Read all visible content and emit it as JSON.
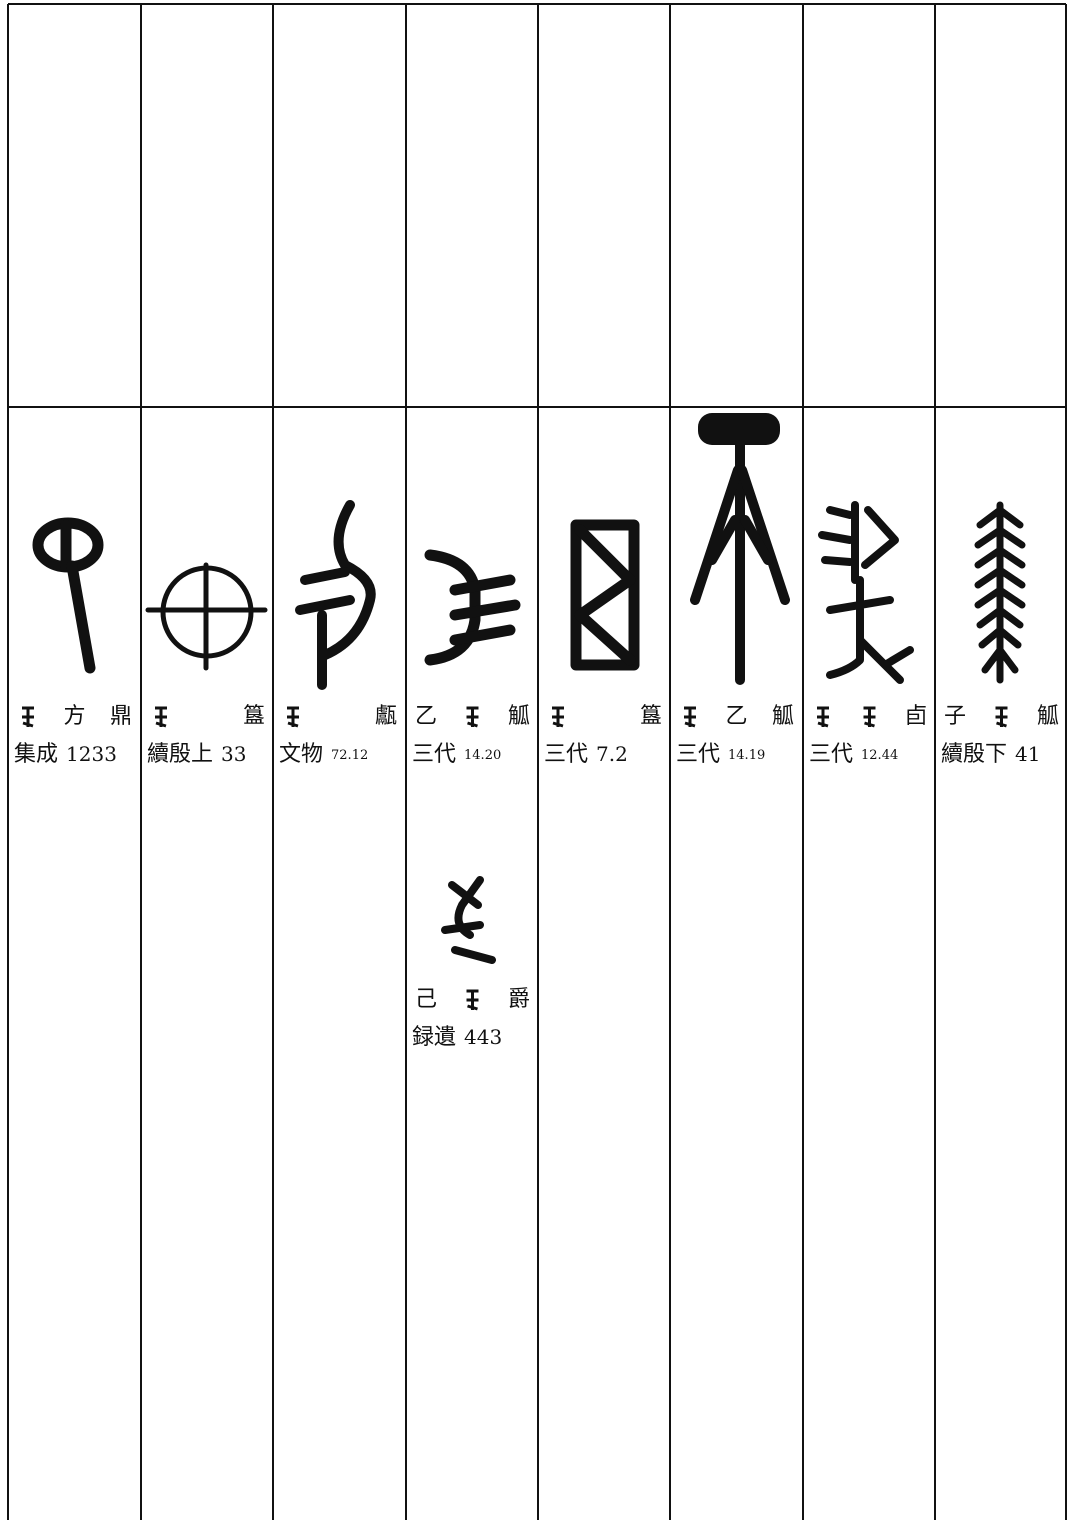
{
  "entries": [
    {
      "words": [
        "方",
        "鼎"
      ],
      "source": "集成",
      "number": "1233"
    },
    {
      "words": [
        "簋"
      ],
      "source": "續殷上",
      "number": "33"
    },
    {
      "words": [
        "甗"
      ],
      "source": "文物",
      "number": "72.12"
    },
    {
      "words": [
        "乙",
        "觚"
      ],
      "source": "三代",
      "number": "14.20"
    },
    {
      "words": [
        "簋"
      ],
      "source": "三代",
      "number": "7.2"
    },
    {
      "words": [
        "乙",
        "觚"
      ],
      "source": "三代",
      "number": "14.19"
    },
    {
      "words": [
        "卣"
      ],
      "source": "三代",
      "number": "12.44"
    },
    {
      "words": [
        "子",
        "觚"
      ],
      "source": "續殷下",
      "number": "41"
    },
    {
      "words": [
        "己",
        "爵"
      ],
      "source": "録遺",
      "number": "443"
    }
  ]
}
